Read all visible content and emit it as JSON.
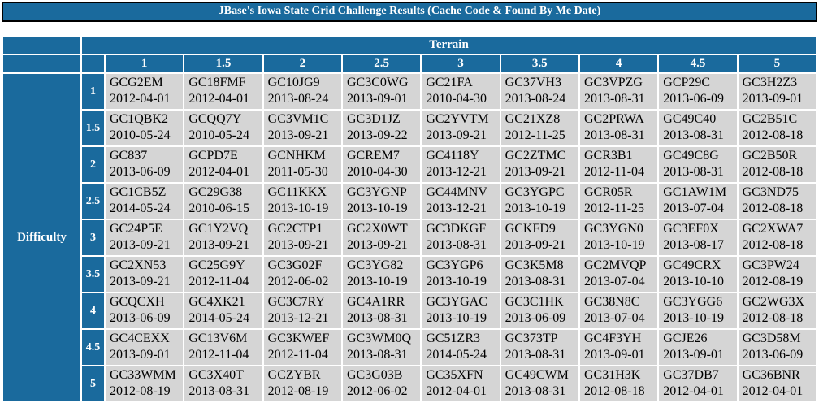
{
  "title": "JBase's Iowa State Grid Challenge Results (Cache Code & Found By Me Date)",
  "colors": {
    "header_blue": "#1A6A9D",
    "cell_gray": "#D5D5D5",
    "header_text": "#FFFFFF",
    "cell_text": "#000000",
    "title_border": "#000000"
  },
  "grid": {
    "terrain_label": "Terrain",
    "difficulty_label": "Difficulty",
    "terrain_values": [
      "1",
      "1.5",
      "2",
      "2.5",
      "3",
      "3.5",
      "4",
      "4.5",
      "5"
    ],
    "rows": [
      {
        "difficulty": "1",
        "cells": [
          {
            "code": "GCG2EM",
            "date": "2012-04-01"
          },
          {
            "code": "GC18FMF",
            "date": "2012-04-01"
          },
          {
            "code": "GC10JG9",
            "date": "2013-08-24"
          },
          {
            "code": "GC3C0WG",
            "date": "2013-09-01"
          },
          {
            "code": "GC21FA",
            "date": "2010-04-30"
          },
          {
            "code": "GC37VH3",
            "date": "2013-08-24"
          },
          {
            "code": "GC3VPZG",
            "date": "2013-08-31"
          },
          {
            "code": "GCP29C",
            "date": "2013-06-09"
          },
          {
            "code": "GC3H2Z3",
            "date": "2013-09-01"
          }
        ]
      },
      {
        "difficulty": "1.5",
        "cells": [
          {
            "code": "GC1QBK2",
            "date": "2010-05-24"
          },
          {
            "code": "GCQQ7Y",
            "date": "2010-05-24"
          },
          {
            "code": "GC3VM1C",
            "date": "2013-09-21"
          },
          {
            "code": "GC3D1JZ",
            "date": "2013-09-22"
          },
          {
            "code": "GC2YVTM",
            "date": "2013-09-21"
          },
          {
            "code": "GC21XZ8",
            "date": "2012-11-25"
          },
          {
            "code": "GC2PRWA",
            "date": "2013-08-31"
          },
          {
            "code": "GC49C40",
            "date": "2013-08-31"
          },
          {
            "code": "GC2B51C",
            "date": "2012-08-18"
          }
        ]
      },
      {
        "difficulty": "2",
        "cells": [
          {
            "code": "GC837",
            "date": "2013-06-09"
          },
          {
            "code": "GCPD7E",
            "date": "2012-04-01"
          },
          {
            "code": "GCNHKM",
            "date": "2011-05-30"
          },
          {
            "code": "GCREM7",
            "date": "2010-04-30"
          },
          {
            "code": "GC4118Y",
            "date": "2013-12-21"
          },
          {
            "code": "GC2ZTMC",
            "date": "2013-09-21"
          },
          {
            "code": "GCR3B1",
            "date": "2012-11-04"
          },
          {
            "code": "GC49C8G",
            "date": "2013-08-31"
          },
          {
            "code": "GC2B50R",
            "date": "2012-08-18"
          }
        ]
      },
      {
        "difficulty": "2.5",
        "cells": [
          {
            "code": "GC1CB5Z",
            "date": "2014-05-24"
          },
          {
            "code": "GC29G38",
            "date": "2010-06-15"
          },
          {
            "code": "GC11KKX",
            "date": "2013-10-19"
          },
          {
            "code": "GC3YGNP",
            "date": "2013-10-19"
          },
          {
            "code": "GC44MNV",
            "date": "2013-12-21"
          },
          {
            "code": "GC3YGPC",
            "date": "2013-10-19"
          },
          {
            "code": "GCR05R",
            "date": "2012-11-25"
          },
          {
            "code": "GC1AW1M",
            "date": "2013-07-04"
          },
          {
            "code": "GC3ND75",
            "date": "2012-08-18"
          }
        ]
      },
      {
        "difficulty": "3",
        "cells": [
          {
            "code": "GC24P5E",
            "date": "2013-09-21"
          },
          {
            "code": "GC1Y2VQ",
            "date": "2013-09-21"
          },
          {
            "code": "GC2CTP1",
            "date": "2013-09-21"
          },
          {
            "code": "GC2X0WT",
            "date": "2013-09-21"
          },
          {
            "code": "GC3DKGF",
            "date": "2013-08-31"
          },
          {
            "code": "GCKFD9",
            "date": "2013-09-21"
          },
          {
            "code": "GC3YGN0",
            "date": "2013-10-19"
          },
          {
            "code": "GC3EF0X",
            "date": "2013-08-17"
          },
          {
            "code": "GC2XWA7",
            "date": "2012-08-18"
          }
        ]
      },
      {
        "difficulty": "3.5",
        "cells": [
          {
            "code": "GC2XN53",
            "date": "2013-09-21"
          },
          {
            "code": "GC25G9Y",
            "date": "2012-11-04"
          },
          {
            "code": "GC3G02F",
            "date": "2012-06-02"
          },
          {
            "code": "GC3YG82",
            "date": "2013-10-19"
          },
          {
            "code": "GC3YGP6",
            "date": "2013-10-19"
          },
          {
            "code": "GC3K5M8",
            "date": "2013-08-31"
          },
          {
            "code": "GC2MVQP",
            "date": "2013-07-04"
          },
          {
            "code": "GC49CRX",
            "date": "2013-10-10"
          },
          {
            "code": "GC3PW24",
            "date": "2012-08-19"
          }
        ]
      },
      {
        "difficulty": "4",
        "cells": [
          {
            "code": "GCQCXH",
            "date": "2013-06-09"
          },
          {
            "code": "GC4XK21",
            "date": "2014-05-24"
          },
          {
            "code": "GC3C7RY",
            "date": "2013-12-21"
          },
          {
            "code": "GC4A1RR",
            "date": "2013-08-31"
          },
          {
            "code": "GC3YGAC",
            "date": "2013-10-19"
          },
          {
            "code": "GC3C1HK",
            "date": "2013-06-09"
          },
          {
            "code": "GC38N8C",
            "date": "2013-07-04"
          },
          {
            "code": "GC3YGG6",
            "date": "2013-10-19"
          },
          {
            "code": "GC2WG3X",
            "date": "2012-08-18"
          }
        ]
      },
      {
        "difficulty": "4.5",
        "cells": [
          {
            "code": "GC4CEXX",
            "date": "2013-09-01"
          },
          {
            "code": "GC13V6M",
            "date": "2012-11-04"
          },
          {
            "code": "GC3KWEF",
            "date": "2012-11-04"
          },
          {
            "code": "GC3WM0Q",
            "date": "2013-08-31"
          },
          {
            "code": "GC51ZR3",
            "date": "2014-05-24"
          },
          {
            "code": "GC373TP",
            "date": "2013-08-31"
          },
          {
            "code": "GC4F3YH",
            "date": "2013-09-01"
          },
          {
            "code": "GCJE26",
            "date": "2013-09-01"
          },
          {
            "code": "GC3D58M",
            "date": "2013-06-09"
          }
        ]
      },
      {
        "difficulty": "5",
        "cells": [
          {
            "code": "GC33WMM",
            "date": "2012-08-19"
          },
          {
            "code": "GC3X40T",
            "date": "2013-08-31"
          },
          {
            "code": "GCZYBR",
            "date": "2012-08-19"
          },
          {
            "code": "GC3G03B",
            "date": "2012-06-02"
          },
          {
            "code": "GC35XFN",
            "date": "2012-04-01"
          },
          {
            "code": "GC49CWM",
            "date": "2013-08-31"
          },
          {
            "code": "GC31H3K",
            "date": "2012-08-18"
          },
          {
            "code": "GC37DB7",
            "date": "2012-04-01"
          },
          {
            "code": "GC36BNR",
            "date": "2012-04-01"
          }
        ]
      }
    ]
  }
}
